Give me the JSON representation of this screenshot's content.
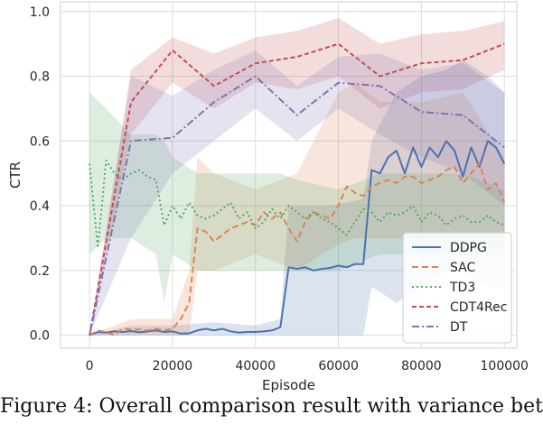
{
  "chart_data": {
    "type": "line",
    "xlabel": "Episode",
    "ylabel": "CTR",
    "xlim": [
      -7000,
      103000
    ],
    "ylim": [
      -0.04,
      1.03
    ],
    "xticks": [
      0,
      20000,
      40000,
      60000,
      80000,
      100000
    ],
    "xtick_labels": [
      "0",
      "20000",
      "40000",
      "60000",
      "80000",
      "100000"
    ],
    "yticks": [
      0.0,
      0.2,
      0.4,
      0.6,
      0.8,
      1.0
    ],
    "ytick_labels": [
      "0.0",
      "0.2",
      "0.4",
      "0.6",
      "0.8",
      "1.0"
    ],
    "grid": true,
    "legend_position": "lower-right",
    "series": [
      {
        "name": "DDPG",
        "color": "#4c72b0",
        "dash": "solid",
        "points": [
          [
            0,
            0.0
          ],
          [
            2000,
            0.01
          ],
          [
            4000,
            0.008
          ],
          [
            6000,
            0.012
          ],
          [
            8000,
            0.01
          ],
          [
            10000,
            0.013
          ],
          [
            12000,
            0.009
          ],
          [
            14000,
            0.012
          ],
          [
            16000,
            0.015
          ],
          [
            18000,
            0.01
          ],
          [
            20000,
            0.012
          ],
          [
            22000,
            0.005
          ],
          [
            24000,
            0.006
          ],
          [
            26000,
            0.015
          ],
          [
            28000,
            0.02
          ],
          [
            30000,
            0.015
          ],
          [
            32000,
            0.02
          ],
          [
            34000,
            0.012
          ],
          [
            36000,
            0.008
          ],
          [
            38000,
            0.01
          ],
          [
            40000,
            0.01
          ],
          [
            42000,
            0.012
          ],
          [
            44000,
            0.015
          ],
          [
            46000,
            0.025
          ],
          [
            48000,
            0.21
          ],
          [
            50000,
            0.205
          ],
          [
            52000,
            0.21
          ],
          [
            54000,
            0.2
          ],
          [
            56000,
            0.205
          ],
          [
            58000,
            0.208
          ],
          [
            60000,
            0.215
          ],
          [
            62000,
            0.21
          ],
          [
            64000,
            0.22
          ],
          [
            66000,
            0.22
          ],
          [
            68000,
            0.51
          ],
          [
            70000,
            0.5
          ],
          [
            72000,
            0.55
          ],
          [
            74000,
            0.57
          ],
          [
            76000,
            0.5
          ],
          [
            78000,
            0.58
          ],
          [
            80000,
            0.52
          ],
          [
            82000,
            0.58
          ],
          [
            84000,
            0.55
          ],
          [
            86000,
            0.6
          ],
          [
            88000,
            0.57
          ],
          [
            90000,
            0.49
          ],
          [
            92000,
            0.58
          ],
          [
            94000,
            0.52
          ],
          [
            96000,
            0.6
          ],
          [
            98000,
            0.58
          ],
          [
            100000,
            0.53
          ]
        ],
        "band": [
          [
            0,
            0.0,
            0.0
          ],
          [
            10000,
            0.0,
            0.03
          ],
          [
            20000,
            0.0,
            0.03
          ],
          [
            30000,
            0.0,
            0.04
          ],
          [
            40000,
            0.0,
            0.03
          ],
          [
            46000,
            0.0,
            0.05
          ],
          [
            48000,
            0.0,
            0.4
          ],
          [
            58000,
            0.0,
            0.4
          ],
          [
            66000,
            0.0,
            0.42
          ],
          [
            68000,
            0.15,
            0.6
          ],
          [
            74000,
            0.1,
            0.75
          ],
          [
            80000,
            0.15,
            0.8
          ],
          [
            86000,
            0.2,
            0.82
          ],
          [
            90000,
            0.2,
            0.85
          ],
          [
            96000,
            0.15,
            0.8
          ],
          [
            100000,
            0.15,
            0.75
          ]
        ]
      },
      {
        "name": "SAC",
        "color": "#dd8452",
        "dash": "7,4",
        "points": [
          [
            0,
            0.0
          ],
          [
            2000,
            0.015
          ],
          [
            4000,
            0.01
          ],
          [
            6000,
            0.0
          ],
          [
            8000,
            0.02
          ],
          [
            10000,
            0.018
          ],
          [
            12000,
            0.018
          ],
          [
            14000,
            0.015
          ],
          [
            16000,
            0.02
          ],
          [
            18000,
            0.015
          ],
          [
            20000,
            0.02
          ],
          [
            22000,
            0.05
          ],
          [
            24000,
            0.1
          ],
          [
            26000,
            0.33
          ],
          [
            28000,
            0.32
          ],
          [
            30000,
            0.29
          ],
          [
            32000,
            0.31
          ],
          [
            34000,
            0.33
          ],
          [
            36000,
            0.34
          ],
          [
            38000,
            0.35
          ],
          [
            40000,
            0.34
          ],
          [
            42000,
            0.38
          ],
          [
            44000,
            0.36
          ],
          [
            46000,
            0.38
          ],
          [
            48000,
            0.33
          ],
          [
            50000,
            0.29
          ],
          [
            52000,
            0.35
          ],
          [
            54000,
            0.38
          ],
          [
            56000,
            0.37
          ],
          [
            58000,
            0.36
          ],
          [
            60000,
            0.4
          ],
          [
            62000,
            0.46
          ],
          [
            64000,
            0.44
          ],
          [
            66000,
            0.43
          ],
          [
            68000,
            0.46
          ],
          [
            70000,
            0.47
          ],
          [
            72000,
            0.48
          ],
          [
            74000,
            0.47
          ],
          [
            76000,
            0.49
          ],
          [
            78000,
            0.49
          ],
          [
            80000,
            0.47
          ],
          [
            82000,
            0.48
          ],
          [
            84000,
            0.49
          ],
          [
            86000,
            0.51
          ],
          [
            88000,
            0.52
          ],
          [
            90000,
            0.47
          ],
          [
            92000,
            0.5
          ],
          [
            94000,
            0.53
          ],
          [
            96000,
            0.45
          ],
          [
            98000,
            0.47
          ],
          [
            100000,
            0.41
          ]
        ],
        "band": [
          [
            0,
            0.0,
            0.0
          ],
          [
            10000,
            0.0,
            0.05
          ],
          [
            20000,
            0.0,
            0.05
          ],
          [
            24000,
            0.0,
            0.2
          ],
          [
            26000,
            0.2,
            0.55
          ],
          [
            30000,
            0.2,
            0.5
          ],
          [
            40000,
            0.25,
            0.45
          ],
          [
            50000,
            0.2,
            0.5
          ],
          [
            56000,
            0.25,
            0.65
          ],
          [
            60000,
            0.28,
            0.75
          ],
          [
            64000,
            0.3,
            0.78
          ],
          [
            70000,
            0.3,
            0.72
          ],
          [
            80000,
            0.3,
            0.72
          ],
          [
            90000,
            0.3,
            0.75
          ],
          [
            100000,
            0.3,
            0.55
          ]
        ]
      },
      {
        "name": "TD3",
        "color": "#55a868",
        "dash": "2,3",
        "points": [
          [
            0,
            0.53
          ],
          [
            2000,
            0.27
          ],
          [
            4000,
            0.54
          ],
          [
            6000,
            0.5
          ],
          [
            8000,
            0.48
          ],
          [
            10000,
            0.5
          ],
          [
            12000,
            0.51
          ],
          [
            14000,
            0.49
          ],
          [
            16000,
            0.48
          ],
          [
            18000,
            0.34
          ],
          [
            20000,
            0.4
          ],
          [
            22000,
            0.36
          ],
          [
            24000,
            0.41
          ],
          [
            26000,
            0.37
          ],
          [
            28000,
            0.36
          ],
          [
            30000,
            0.37
          ],
          [
            32000,
            0.39
          ],
          [
            34000,
            0.41
          ],
          [
            36000,
            0.36
          ],
          [
            38000,
            0.38
          ],
          [
            40000,
            0.33
          ],
          [
            42000,
            0.35
          ],
          [
            44000,
            0.39
          ],
          [
            46000,
            0.36
          ],
          [
            48000,
            0.4
          ],
          [
            50000,
            0.38
          ],
          [
            52000,
            0.36
          ],
          [
            54000,
            0.38
          ],
          [
            56000,
            0.36
          ],
          [
            58000,
            0.35
          ],
          [
            60000,
            0.33
          ],
          [
            62000,
            0.31
          ],
          [
            64000,
            0.35
          ],
          [
            66000,
            0.39
          ],
          [
            68000,
            0.38
          ],
          [
            70000,
            0.35
          ],
          [
            72000,
            0.38
          ],
          [
            74000,
            0.37
          ],
          [
            76000,
            0.38
          ],
          [
            78000,
            0.4
          ],
          [
            80000,
            0.35
          ],
          [
            82000,
            0.38
          ],
          [
            84000,
            0.37
          ],
          [
            86000,
            0.34
          ],
          [
            88000,
            0.36
          ],
          [
            90000,
            0.37
          ],
          [
            92000,
            0.35
          ],
          [
            94000,
            0.35
          ],
          [
            96000,
            0.37
          ],
          [
            98000,
            0.35
          ],
          [
            100000,
            0.34
          ]
        ],
        "band": [
          [
            0,
            0.25,
            0.75
          ],
          [
            4000,
            0.3,
            0.7
          ],
          [
            10000,
            0.3,
            0.62
          ],
          [
            16000,
            0.25,
            0.62
          ],
          [
            18000,
            0.1,
            0.6
          ],
          [
            20000,
            0.25,
            0.55
          ],
          [
            26000,
            0.2,
            0.5
          ],
          [
            40000,
            0.2,
            0.5
          ],
          [
            46000,
            0.2,
            0.5
          ],
          [
            50000,
            0.2,
            0.48
          ],
          [
            60000,
            0.2,
            0.45
          ],
          [
            70000,
            0.25,
            0.5
          ],
          [
            80000,
            0.25,
            0.5
          ],
          [
            90000,
            0.25,
            0.5
          ],
          [
            100000,
            0.25,
            0.45
          ]
        ]
      },
      {
        "name": "CDT4Rec",
        "color": "#c44e52",
        "dash": "5,3",
        "points": [
          [
            0,
            0.0
          ],
          [
            10000,
            0.72
          ],
          [
            20000,
            0.88
          ],
          [
            30000,
            0.77
          ],
          [
            40000,
            0.84
          ],
          [
            50000,
            0.86
          ],
          [
            60000,
            0.9
          ],
          [
            70000,
            0.8
          ],
          [
            80000,
            0.84
          ],
          [
            90000,
            0.85
          ],
          [
            100000,
            0.9
          ]
        ],
        "band": [
          [
            0,
            0.0,
            0.0
          ],
          [
            10000,
            0.62,
            0.82
          ],
          [
            20000,
            0.78,
            0.92
          ],
          [
            30000,
            0.7,
            0.87
          ],
          [
            40000,
            0.78,
            0.92
          ],
          [
            50000,
            0.76,
            0.94
          ],
          [
            60000,
            0.8,
            0.98
          ],
          [
            70000,
            0.7,
            0.9
          ],
          [
            80000,
            0.75,
            0.93
          ],
          [
            90000,
            0.76,
            0.94
          ],
          [
            100000,
            0.82,
            0.97
          ]
        ]
      },
      {
        "name": "DT",
        "color": "#8172b3",
        "dash": "8,3,2,3",
        "points": [
          [
            0,
            0.0
          ],
          [
            10000,
            0.6
          ],
          [
            20000,
            0.61
          ],
          [
            30000,
            0.72
          ],
          [
            40000,
            0.8
          ],
          [
            50000,
            0.68
          ],
          [
            60000,
            0.78
          ],
          [
            70000,
            0.77
          ],
          [
            80000,
            0.69
          ],
          [
            90000,
            0.68
          ],
          [
            100000,
            0.58
          ]
        ],
        "band": [
          [
            0,
            0.0,
            0.0
          ],
          [
            10000,
            0.3,
            0.8
          ],
          [
            20000,
            0.5,
            0.74
          ],
          [
            30000,
            0.6,
            0.82
          ],
          [
            40000,
            0.7,
            0.88
          ],
          [
            50000,
            0.6,
            0.77
          ],
          [
            60000,
            0.7,
            0.86
          ],
          [
            70000,
            0.62,
            0.87
          ],
          [
            80000,
            0.55,
            0.82
          ],
          [
            90000,
            0.5,
            0.84
          ],
          [
            100000,
            0.4,
            0.75
          ]
        ]
      }
    ]
  },
  "caption": "Figure 4: Overall comparison result with variance bet"
}
